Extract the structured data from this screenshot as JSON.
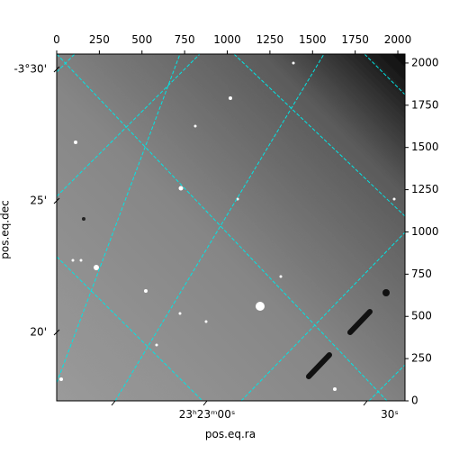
{
  "chart_data": {
    "type": "image",
    "xlabel": "pos.eq.ra",
    "ylabel": "pos.eq.dec",
    "xlim": [
      0,
      2042
    ],
    "ylim": [
      0,
      2053
    ],
    "xticks": [
      0,
      250,
      500,
      750,
      1000,
      1250,
      1500,
      1750,
      2000
    ],
    "yticks": [
      0,
      250,
      500,
      750,
      1000,
      1250,
      1500,
      1750,
      2000
    ],
    "ra_ticks": [
      "23ʰ23ᵐ00ˢ",
      "30ˢ"
    ],
    "dec_ticks": [
      "-3°30'",
      "25'",
      "20'"
    ],
    "grid_color": "#00e5e5"
  }
}
